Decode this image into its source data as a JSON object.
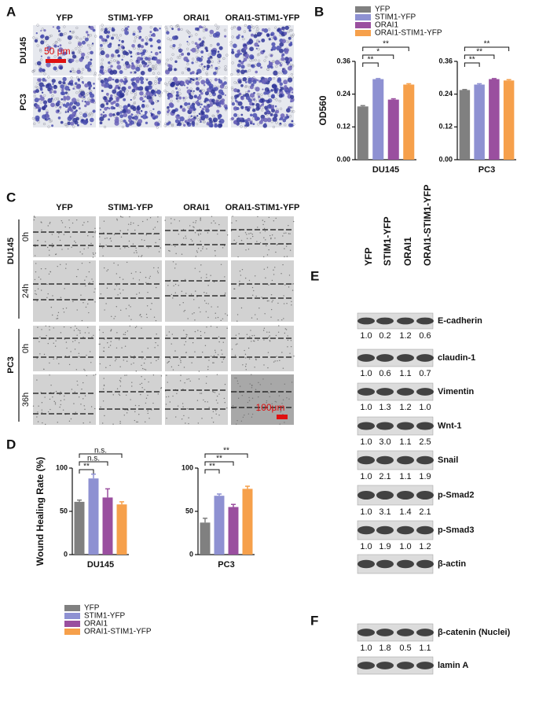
{
  "panel_labels": [
    "A",
    "B",
    "C",
    "D",
    "E",
    "F"
  ],
  "invasion_images": {
    "columns": [
      "YFP",
      "STIM1-YFP",
      "ORAI1",
      "ORAI1-STIM1-YFP"
    ],
    "rows": [
      "DU145",
      "PC3"
    ],
    "scale_bar": "50 μm"
  },
  "wound_images": {
    "columns": [
      "YFP",
      "STIM1-YFP",
      "ORAI1",
      "ORAI1-STIM1-YFP"
    ],
    "rows": [
      {
        "cell": "DU145",
        "times": [
          "0h",
          "24h"
        ]
      },
      {
        "cell": "PC3",
        "times": [
          "0h",
          "36h"
        ]
      }
    ],
    "scale_bar": "100μm"
  },
  "western_blot": {
    "lanes": [
      "YFP",
      "STIM1-YFP",
      "ORAI1",
      "ORAI1-STIM1-YFP"
    ],
    "rows": [
      {
        "label": "E-cadherin",
        "quantification": [
          "1.0",
          "0.2",
          "1.2",
          "0.6"
        ]
      },
      {
        "label": "claudin-1",
        "quantification": [
          "1.0",
          "0.6",
          "1.1",
          "0.7"
        ]
      },
      {
        "label": "Vimentin",
        "quantification": [
          "1.0",
          "1.3",
          "1.2",
          "1.0"
        ]
      },
      {
        "label": "Wnt-1",
        "quantification": [
          "1.0",
          "3.0",
          "1.1",
          "2.5"
        ]
      },
      {
        "label": "Snail",
        "quantification": [
          "1.0",
          "2.1",
          "1.1",
          "1.9"
        ]
      },
      {
        "label": "p-Smad2",
        "quantification": [
          "1.0",
          "3.1",
          "1.4",
          "2.1"
        ]
      },
      {
        "label": "p-Smad3",
        "quantification": [
          "1.0",
          "1.9",
          "1.0",
          "1.2"
        ]
      },
      {
        "label": "β-actin"
      }
    ]
  },
  "nuclear_blot": {
    "rows": [
      {
        "label": "β-catenin (Nuclei)",
        "quantification": [
          "1.0",
          "1.8",
          "0.5",
          "1.1"
        ]
      },
      {
        "label": "lamin A"
      }
    ]
  },
  "chart_data": [
    {
      "type": "bar",
      "y_label": "OD560",
      "categories": [
        "DU145"
      ],
      "legend": "top",
      "series": [
        {
          "name": "YFP",
          "color": "#808080",
          "values": [
            0.195
          ],
          "errors": [
            0.003
          ]
        },
        {
          "name": "STIM1-YFP",
          "color": "#8e91d2",
          "values": [
            0.295
          ],
          "errors": [
            0.002
          ]
        },
        {
          "name": "ORAI1",
          "color": "#9a4f9f",
          "values": [
            0.22
          ],
          "errors": [
            0.003
          ]
        },
        {
          "name": "ORAI1-STIM1-YFP",
          "color": "#f6a04b",
          "values": [
            0.275
          ],
          "errors": [
            0.003
          ]
        }
      ],
      "ylim": [
        0,
        0.36
      ],
      "yticks": [
        {
          "value": 0,
          "label": "0.00"
        },
        {
          "value": 0.12,
          "label": "0.12"
        },
        {
          "value": 0.24,
          "label": "0.24"
        },
        {
          "value": 0.36,
          "label": "0.36"
        }
      ],
      "annotations": [
        "**",
        "*",
        "**"
      ]
    },
    {
      "type": "bar",
      "categories": [
        "PC3"
      ],
      "series": [
        {
          "color": "#808080",
          "values": [
            0.255
          ],
          "errors": [
            0.002
          ]
        },
        {
          "color": "#8e91d2",
          "values": [
            0.275
          ],
          "errors": [
            0.003
          ]
        },
        {
          "color": "#9a4f9f",
          "values": [
            0.295
          ],
          "errors": [
            0.002
          ]
        },
        {
          "color": "#f6a04b",
          "values": [
            0.29
          ],
          "errors": [
            0.003
          ]
        }
      ],
      "ylim": [
        0,
        0.36
      ],
      "yticks": [
        {
          "value": 0,
          "label": "0.00"
        },
        {
          "value": 0.12,
          "label": "0.12"
        },
        {
          "value": 0.24,
          "label": "0.24"
        },
        {
          "value": 0.36,
          "label": "0.36"
        }
      ],
      "annotations": [
        "**",
        "**",
        "**"
      ]
    },
    {
      "type": "bar",
      "y_label": "Wound Healing Rate (%)",
      "categories": [
        "DU145"
      ],
      "legend": "bottom",
      "series": [
        {
          "name": "YFP",
          "color": "#808080",
          "values": [
            61
          ],
          "errors": [
            2
          ]
        },
        {
          "name": "STIM1-YFP",
          "color": "#8e91d2",
          "values": [
            88
          ],
          "errors": [
            5
          ]
        },
        {
          "name": "ORAI1",
          "color": "#9a4f9f",
          "values": [
            66
          ],
          "errors": [
            10
          ]
        },
        {
          "name": "ORAI1-STIM1-YFP",
          "color": "#f6a04b",
          "values": [
            58
          ],
          "errors": [
            3
          ]
        }
      ],
      "ylim": [
        0,
        100
      ],
      "yticks": [
        0,
        50,
        100
      ],
      "annotations": [
        "**",
        "n.s.",
        "n.s."
      ]
    },
    {
      "type": "bar",
      "categories": [
        "PC3"
      ],
      "series": [
        {
          "color": "#808080",
          "values": [
            37
          ],
          "errors": [
            5
          ]
        },
        {
          "color": "#8e91d2",
          "values": [
            68
          ],
          "errors": [
            2
          ]
        },
        {
          "color": "#9a4f9f",
          "values": [
            55
          ],
          "errors": [
            3
          ]
        },
        {
          "color": "#f6a04b",
          "values": [
            76
          ],
          "errors": [
            3
          ]
        }
      ],
      "ylim": [
        0,
        100
      ],
      "yticks": [
        0,
        50,
        100
      ],
      "annotations": [
        "**",
        "**",
        "**"
      ]
    }
  ]
}
